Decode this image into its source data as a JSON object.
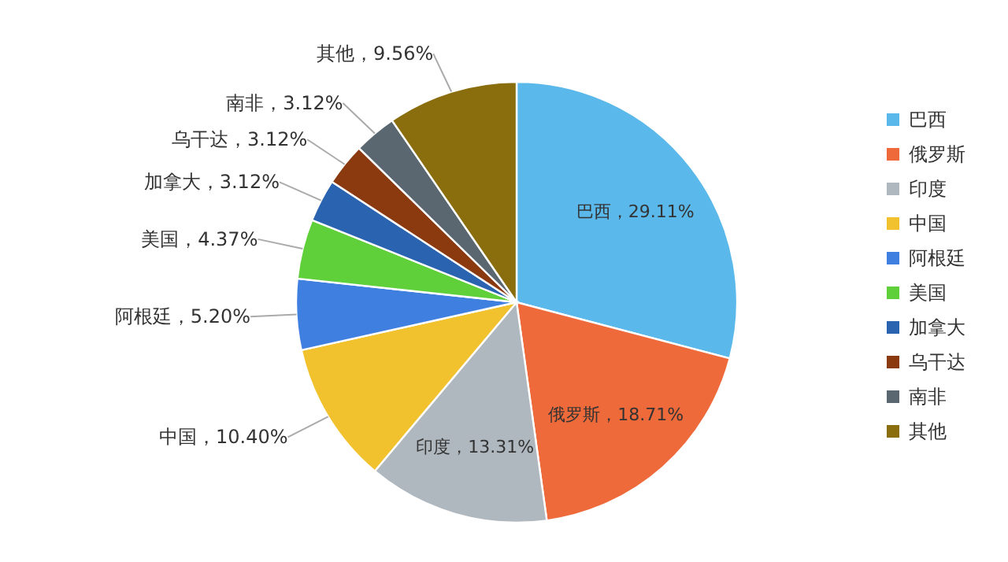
{
  "chart_data": {
    "type": "pie",
    "categories": [
      "巴西",
      "俄罗斯",
      "印度",
      "中国",
      "阿根廷",
      "美国",
      "加拿大",
      "乌干达",
      "南非",
      "其他"
    ],
    "values": [
      29.11,
      18.71,
      13.31,
      10.4,
      5.2,
      4.37,
      3.12,
      3.12,
      3.12,
      9.56
    ],
    "colors": [
      "#5bb8ea",
      "#ef6a3a",
      "#b0b8bf",
      "#f2c12e",
      "#3f7fe0",
      "#5fcf3a",
      "#2a64b0",
      "#8b3a10",
      "#5a6670",
      "#8a6d0c"
    ],
    "value_labels": [
      "巴西，29.11%",
      "俄罗斯，18.71%",
      "印度，13.31%",
      "中国，10.40%",
      "阿根廷，5.20%",
      "美国，4.37%",
      "加拿大，3.12%",
      "乌干达，3.12%",
      "南非，3.12%",
      "其他，9.56%"
    ],
    "legend": "right"
  }
}
